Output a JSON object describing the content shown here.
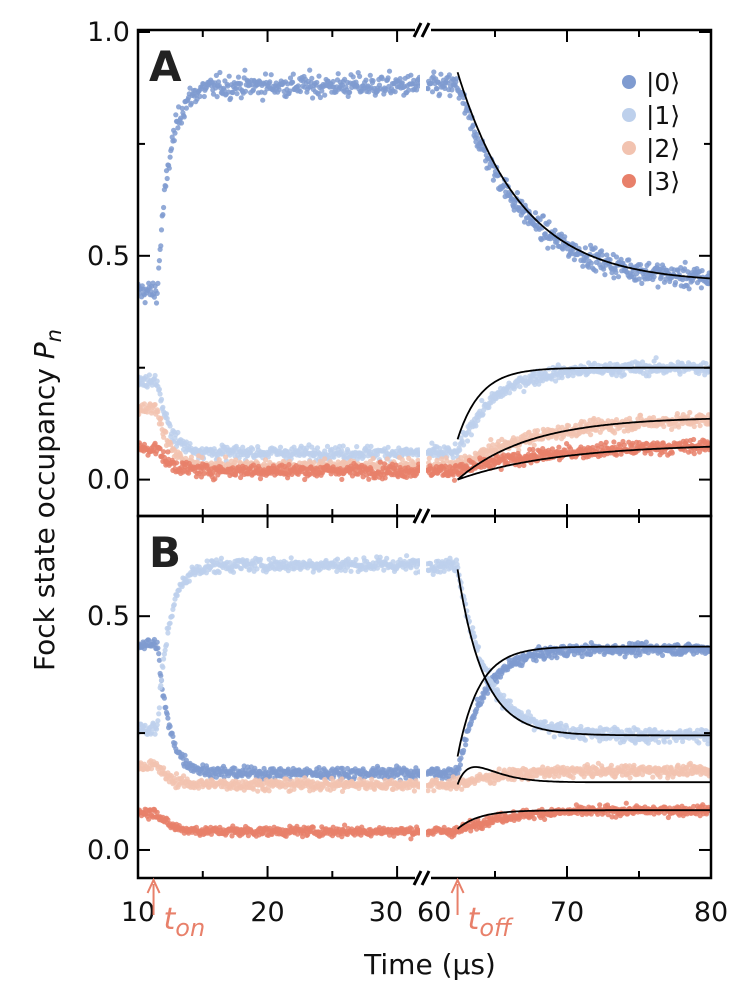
{
  "chart_data": {
    "type": "scatter",
    "ylabel_main": "Fock state occupancy",
    "ylabel_symbol": "P",
    "ylabel_sub": "n",
    "xlabel": "Time (μs)",
    "x_segments": [
      {
        "xlim": [
          10,
          32
        ],
        "ticks": [
          10,
          20,
          30
        ],
        "tick_labels": [
          "10",
          "20",
          "30"
        ]
      },
      {
        "xlim": [
          60,
          80
        ],
        "ticks": [
          60,
          70,
          80
        ],
        "tick_labels": [
          "60",
          "70",
          "80"
        ]
      }
    ],
    "markers": [
      {
        "name": "t_on",
        "base": "t",
        "sub": "on",
        "x": 11.2,
        "color": "#e8806a"
      },
      {
        "name": "t_off",
        "base": "t",
        "sub": "off",
        "x": 62.4,
        "color": "#e8806a"
      }
    ],
    "legend": [
      {
        "label": "|0⟩",
        "color": "#7f9bd0"
      },
      {
        "label": "|1⟩",
        "color": "#bdd0ec"
      },
      {
        "label": "|2⟩",
        "color": "#f2c3b0"
      },
      {
        "label": "|3⟩",
        "color": "#e8806a"
      }
    ],
    "fit_color": "#000000",
    "panels": [
      {
        "label": "A",
        "ylim": [
          -0.05,
          1.0
        ],
        "yticks": [
          0.0,
          0.5,
          1.0
        ],
        "ytick_labels": [
          "0.0",
          "0.5",
          "1.0"
        ],
        "series": [
          {
            "name": "|0⟩",
            "initial": 0.42,
            "on_level": 0.88,
            "off_target": 0.44,
            "off_tau": 4.5,
            "noise": 0.025
          },
          {
            "name": "|1⟩",
            "initial": 0.22,
            "on_level": 0.06,
            "off_target": 0.25,
            "off_tau": 2.5,
            "noise": 0.015
          },
          {
            "name": "|2⟩",
            "initial": 0.16,
            "on_level": 0.03,
            "off_target": 0.14,
            "off_tau": 6.0,
            "noise": 0.015
          },
          {
            "name": "|3⟩",
            "initial": 0.07,
            "on_level": 0.02,
            "off_target": 0.08,
            "off_tau": 7.0,
            "noise": 0.015
          }
        ],
        "fits": [
          {
            "name": "|0⟩",
            "start": 0.91,
            "end": 0.44,
            "tau": 4.5
          },
          {
            "name": "|1⟩",
            "start": 0.09,
            "end": 0.25,
            "tau": 1.6
          },
          {
            "name": "|2⟩",
            "start": 0.0,
            "end": 0.14,
            "tau": 5.0
          },
          {
            "name": "|3⟩",
            "start": 0.0,
            "end": 0.08,
            "tau": 7.0
          }
        ]
      },
      {
        "label": "B",
        "ylim": [
          -0.03,
          0.71
        ],
        "yticks": [
          0.0,
          0.5
        ],
        "ytick_labels": [
          "0.0",
          "0.5"
        ],
        "series": [
          {
            "name": "|0⟩",
            "initial": 0.44,
            "on_level": 0.165,
            "off_target": 0.43,
            "off_tau": 1.8,
            "noise": 0.012
          },
          {
            "name": "|1⟩",
            "initial": 0.26,
            "on_level": 0.61,
            "off_target": 0.245,
            "off_tau": 2.0,
            "noise": 0.015
          },
          {
            "name": "|2⟩",
            "initial": 0.18,
            "on_level": 0.14,
            "off_target": 0.17,
            "off_tau": 3.0,
            "noise": 0.012
          },
          {
            "name": "|3⟩",
            "initial": 0.08,
            "on_level": 0.04,
            "off_target": 0.085,
            "off_tau": 3.0,
            "noise": 0.01
          }
        ],
        "fits": [
          {
            "name": "|0⟩",
            "start": 0.2,
            "end": 0.435,
            "tau": 1.5
          },
          {
            "name": "|1⟩",
            "start": 0.6,
            "end": 0.245,
            "tau": 1.8
          },
          {
            "name": "|2⟩",
            "start": 0.14,
            "end": 0.145,
            "tau": 3.5,
            "bump": 0.06,
            "bump_tau": 1.2
          },
          {
            "name": "|3⟩",
            "start": 0.045,
            "end": 0.085,
            "tau": 1.5
          }
        ]
      }
    ]
  }
}
